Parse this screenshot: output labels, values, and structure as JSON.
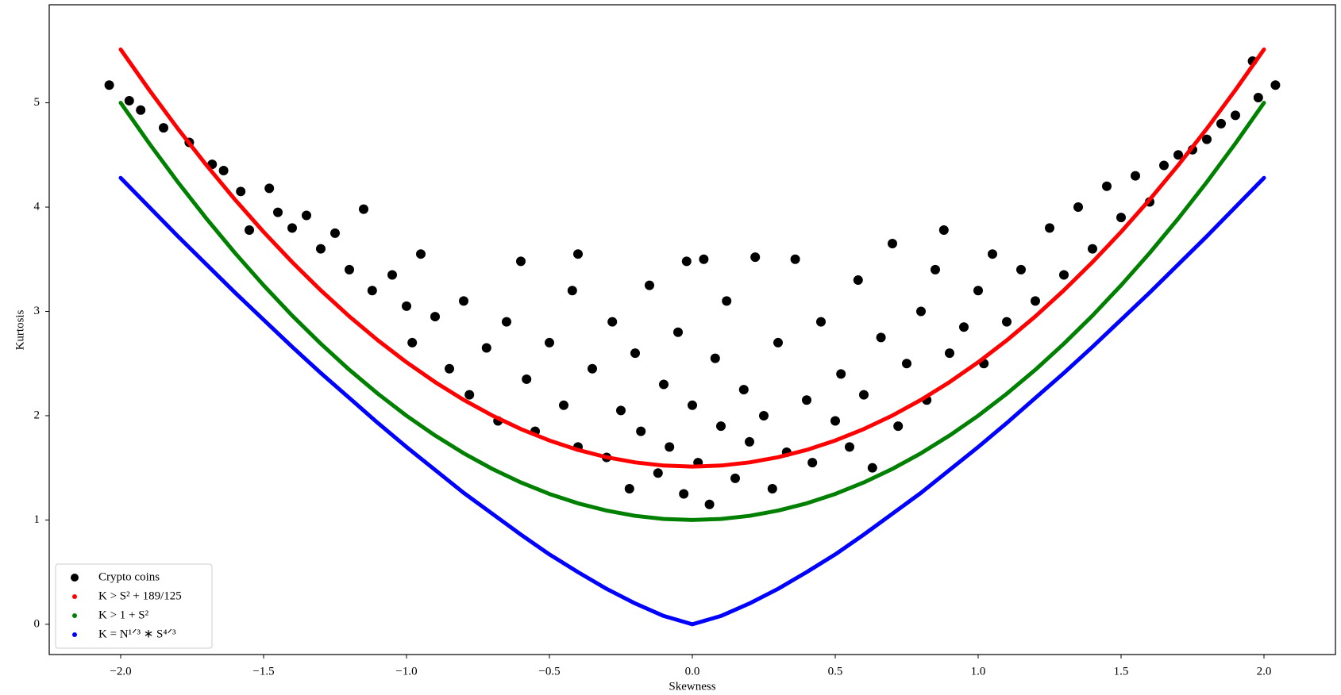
{
  "chart_data": {
    "type": "scatter",
    "xlabel": "Skewness",
    "ylabel": "Kurtosis",
    "xlim": [
      -2.25,
      2.25
    ],
    "ylim": [
      -0.29,
      5.94
    ],
    "xticks": [
      {
        "value": -2,
        "label": "−2.0"
      },
      {
        "value": -1.5,
        "label": "−1.5"
      },
      {
        "value": -1,
        "label": "−1.0"
      },
      {
        "value": -0.5,
        "label": "−0.5"
      },
      {
        "value": 0,
        "label": "0.0"
      },
      {
        "value": 0.5,
        "label": "0.5"
      },
      {
        "value": 1,
        "label": "1.0"
      },
      {
        "value": 1.5,
        "label": "1.5"
      },
      {
        "value": 2,
        "label": "2.0"
      }
    ],
    "yticks": [
      0,
      1,
      2,
      3,
      4,
      5
    ],
    "legend": "lower left",
    "series": [
      {
        "name": "Crypto coins",
        "color": "#000000",
        "style": "points",
        "x": [
          -2.04,
          -1.97,
          -1.93,
          -1.85,
          -1.76,
          -1.68,
          -1.64,
          -1.58,
          -1.55,
          -1.48,
          -1.45,
          -1.4,
          -1.35,
          -1.3,
          -1.25,
          -1.2,
          -1.15,
          -1.12,
          -1.05,
          -1,
          -0.98,
          -0.95,
          -0.9,
          -0.85,
          -0.8,
          -0.78,
          -0.72,
          -0.68,
          -0.65,
          -0.6,
          -0.58,
          -0.55,
          -0.5,
          -0.45,
          -0.42,
          -0.4,
          -0.4,
          -0.35,
          -0.3,
          -0.28,
          -0.25,
          -0.22,
          -0.2,
          -0.18,
          -0.15,
          -0.12,
          -0.1,
          -0.08,
          -0.05,
          -0.03,
          -0.02,
          0,
          0.02,
          0.04,
          0.06,
          0.08,
          0.1,
          0.12,
          0.15,
          0.18,
          0.2,
          0.22,
          0.25,
          0.28,
          0.3,
          0.33,
          0.36,
          0.4,
          0.42,
          0.45,
          0.5,
          0.52,
          0.55,
          0.58,
          0.6,
          0.63,
          0.66,
          0.7,
          0.72,
          0.75,
          0.8,
          0.82,
          0.85,
          0.88,
          0.9,
          0.95,
          1,
          1.02,
          1.05,
          1.1,
          1.15,
          1.2,
          1.25,
          1.3,
          1.35,
          1.4,
          1.45,
          1.5,
          1.55,
          1.6,
          1.65,
          1.7,
          1.75,
          1.8,
          1.85,
          1.9,
          1.96,
          1.98,
          2.04
        ],
        "values": [
          5.17,
          5.02,
          4.93,
          4.76,
          4.62,
          4.41,
          4.35,
          4.15,
          3.78,
          4.18,
          3.95,
          3.8,
          3.92,
          3.6,
          3.75,
          3.4,
          3.98,
          3.2,
          3.35,
          3.05,
          2.7,
          3.55,
          2.95,
          2.45,
          3.1,
          2.2,
          2.65,
          1.95,
          2.9,
          3.48,
          2.35,
          1.85,
          2.7,
          2.1,
          3.2,
          1.7,
          3.55,
          2.45,
          1.6,
          2.9,
          2.05,
          1.3,
          2.6,
          1.85,
          3.25,
          1.45,
          2.3,
          1.7,
          2.8,
          1.25,
          3.48,
          2.1,
          1.55,
          3.5,
          1.15,
          2.55,
          1.9,
          3.1,
          1.4,
          2.25,
          1.75,
          3.52,
          2,
          1.3,
          2.7,
          1.65,
          3.5,
          2.15,
          1.55,
          2.9,
          1.95,
          2.4,
          1.7,
          3.3,
          2.2,
          1.5,
          2.75,
          3.65,
          1.9,
          2.5,
          3,
          2.15,
          3.4,
          3.78,
          2.6,
          2.85,
          3.2,
          2.5,
          3.55,
          2.9,
          3.4,
          3.1,
          3.8,
          3.35,
          4,
          3.6,
          4.2,
          3.9,
          4.3,
          4.05,
          4.4,
          4.5,
          4.55,
          4.65,
          4.8,
          4.88,
          5.4,
          5.05,
          5.17
        ]
      },
      {
        "name": "K > S² + 189/125",
        "color": "#ff0000",
        "style": "curve",
        "x": [
          -2,
          -1.9,
          -1.8,
          -1.7,
          -1.6,
          -1.5,
          -1.4,
          -1.3,
          -1.2,
          -1.1,
          -1,
          -0.9,
          -0.8,
          -0.7,
          -0.6,
          -0.5,
          -0.4,
          -0.3,
          -0.2,
          -0.1,
          0,
          0.1,
          0.2,
          0.3,
          0.4,
          0.5,
          0.6,
          0.7,
          0.8,
          0.9,
          1,
          1.1,
          1.2,
          1.3,
          1.4,
          1.5,
          1.6,
          1.7,
          1.8,
          1.9,
          2
        ],
        "values": [
          5.512,
          5.122,
          4.752,
          4.402,
          4.072,
          3.762,
          3.472,
          3.202,
          2.952,
          2.722,
          2.512,
          2.322,
          2.152,
          2.002,
          1.872,
          1.762,
          1.672,
          1.602,
          1.552,
          1.522,
          1.512,
          1.522,
          1.552,
          1.602,
          1.672,
          1.762,
          1.872,
          2.002,
          2.152,
          2.322,
          2.512,
          2.722,
          2.952,
          3.202,
          3.472,
          3.762,
          4.072,
          4.402,
          4.752,
          5.122,
          5.512
        ]
      },
      {
        "name": "K > 1 + S²",
        "color": "#008000",
        "style": "curve",
        "x": [
          -2,
          -1.9,
          -1.8,
          -1.7,
          -1.6,
          -1.5,
          -1.4,
          -1.3,
          -1.2,
          -1.1,
          -1,
          -0.9,
          -0.8,
          -0.7,
          -0.6,
          -0.5,
          -0.4,
          -0.3,
          -0.2,
          -0.1,
          0,
          0.1,
          0.2,
          0.3,
          0.4,
          0.5,
          0.6,
          0.7,
          0.8,
          0.9,
          1,
          1.1,
          1.2,
          1.3,
          1.4,
          1.5,
          1.6,
          1.7,
          1.8,
          1.9,
          2
        ],
        "values": [
          5,
          4.61,
          4.24,
          3.89,
          3.56,
          3.25,
          2.96,
          2.69,
          2.44,
          2.21,
          2,
          1.81,
          1.64,
          1.49,
          1.36,
          1.25,
          1.16,
          1.09,
          1.04,
          1.01,
          1,
          1.01,
          1.04,
          1.09,
          1.16,
          1.25,
          1.36,
          1.49,
          1.64,
          1.81,
          2,
          2.21,
          2.44,
          2.69,
          2.96,
          3.25,
          3.56,
          3.89,
          4.24,
          4.61,
          5
        ]
      },
      {
        "name": "K = N¹ᐟ³ ∗ S⁴ᐟ³",
        "color": "#0000ff",
        "style": "curve",
        "x": [
          -2,
          -1.9,
          -1.8,
          -1.7,
          -1.6,
          -1.5,
          -1.4,
          -1.3,
          -1.2,
          -1.1,
          -1,
          -0.9,
          -0.8,
          -0.7,
          -0.6,
          -0.5,
          -0.4,
          -0.3,
          -0.2,
          -0.1,
          0,
          0.1,
          0.2,
          0.3,
          0.4,
          0.5,
          0.6,
          0.7,
          0.8,
          0.9,
          1,
          1.1,
          1.2,
          1.3,
          1.4,
          1.5,
          1.6,
          1.7,
          1.8,
          1.9,
          2
        ],
        "values": [
          4.28,
          4,
          3.72,
          3.45,
          3.18,
          2.92,
          2.66,
          2.41,
          2.17,
          1.93,
          1.7,
          1.48,
          1.26,
          1.06,
          0.86,
          0.67,
          0.5,
          0.34,
          0.2,
          0.08,
          0,
          0.08,
          0.2,
          0.34,
          0.5,
          0.67,
          0.86,
          1.06,
          1.26,
          1.48,
          1.7,
          1.93,
          2.17,
          2.41,
          2.66,
          2.92,
          3.18,
          3.45,
          3.72,
          4,
          4.28
        ]
      }
    ]
  }
}
